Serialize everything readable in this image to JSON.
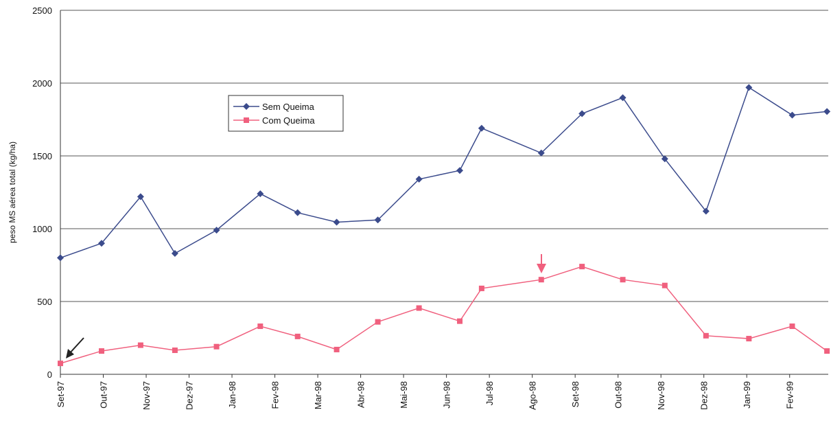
{
  "chart_data": {
    "type": "line",
    "y_label": "peso MS aérea total (kg/ha)",
    "x": [
      0,
      0.96,
      1.87,
      2.67,
      3.64,
      4.66,
      5.53,
      6.44,
      7.4,
      8.36,
      9.31,
      9.82,
      11.21,
      12.16,
      13.11,
      14.09,
      15.05,
      16.05,
      17.06,
      17.87
    ],
    "series": [
      {
        "name": "Sem Queima",
        "color": "#3b4b8c",
        "marker": "diamond",
        "values": [
          800,
          900,
          1220,
          830,
          990,
          1240,
          1110,
          1045,
          1060,
          1340,
          1400,
          1690,
          1520,
          1790,
          1900,
          1480,
          1120,
          1970,
          1780,
          1805
        ]
      },
      {
        "name": "Com Queima",
        "color": "#f0607e",
        "marker": "square",
        "values": [
          75,
          160,
          200,
          165,
          190,
          330,
          260,
          170,
          360,
          455,
          365,
          590,
          650,
          740,
          650,
          610,
          265,
          245,
          330,
          160
        ]
      }
    ],
    "xlim": [
      0,
      17.9
    ],
    "xticks": [
      {
        "value": 0,
        "label": "Set-97"
      },
      {
        "value": 1,
        "label": "Out-97"
      },
      {
        "value": 2,
        "label": "Nov-97"
      },
      {
        "value": 3,
        "label": "Dez-97"
      },
      {
        "value": 4,
        "label": "Jan-98"
      },
      {
        "value": 5,
        "label": "Fev-98"
      },
      {
        "value": 6,
        "label": "Mar-98"
      },
      {
        "value": 7,
        "label": "Abr-98"
      },
      {
        "value": 8,
        "label": "Mai-98"
      },
      {
        "value": 9,
        "label": "Jun-98"
      },
      {
        "value": 10,
        "label": "Jul-98"
      },
      {
        "value": 11,
        "label": "Ago-98"
      },
      {
        "value": 12,
        "label": "Set-98"
      },
      {
        "value": 13,
        "label": "Out-98"
      },
      {
        "value": 14,
        "label": "Nov-98"
      },
      {
        "value": 15,
        "label": "Dez-98"
      },
      {
        "value": 16,
        "label": "Jan-99"
      },
      {
        "value": 17,
        "label": "Fev-99"
      }
    ],
    "ylim": [
      0,
      2500
    ],
    "yticks": [
      0,
      500,
      1000,
      1500,
      2000,
      2500
    ],
    "grid": true
  }
}
